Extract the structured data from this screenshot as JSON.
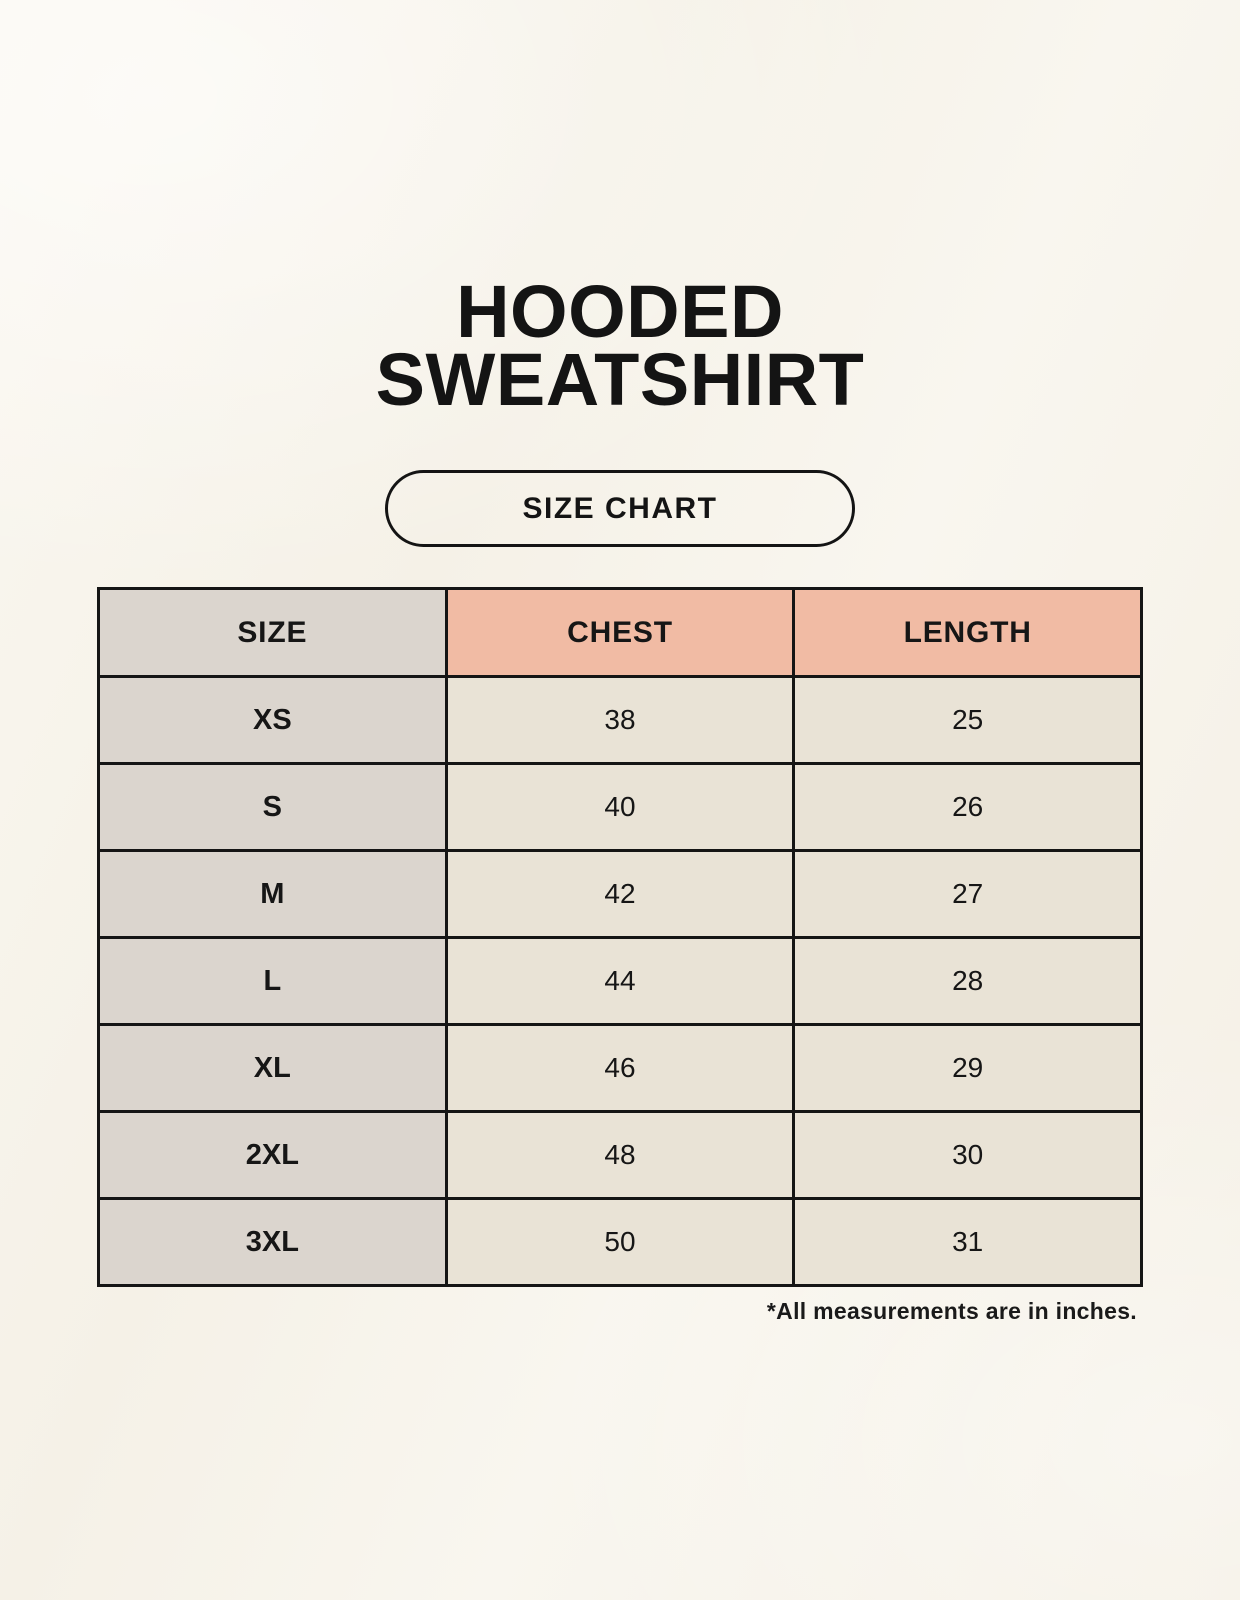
{
  "header": {
    "title_line1": "HOODED",
    "title_line2": "SWEATSHIRT",
    "badge_label": "SIZE CHART"
  },
  "footnote": "*All measurements are in inches.",
  "colors": {
    "background": "#f7f3ea",
    "header_accent": "#f1bba4",
    "size_column_bg": "#dbd5ce",
    "data_cell_bg": "#e9e3d6",
    "border": "#151515",
    "text": "#141414"
  },
  "chart_data": {
    "type": "table",
    "title": "HOODED SWEATSHIRT — SIZE CHART",
    "columns": [
      "SIZE",
      "CHEST",
      "LENGTH"
    ],
    "units": "inches",
    "rows": [
      {
        "size": "XS",
        "chest": 38,
        "length": 25
      },
      {
        "size": "S",
        "chest": 40,
        "length": 26
      },
      {
        "size": "M",
        "chest": 42,
        "length": 27
      },
      {
        "size": "L",
        "chest": 44,
        "length": 28
      },
      {
        "size": "XL",
        "chest": 46,
        "length": 29
      },
      {
        "size": "2XL",
        "chest": 48,
        "length": 30
      },
      {
        "size": "3XL",
        "chest": 50,
        "length": 31
      }
    ]
  }
}
